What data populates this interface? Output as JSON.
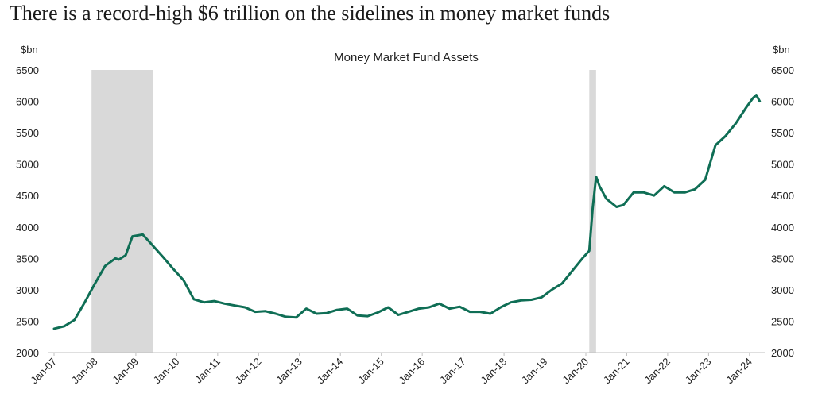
{
  "headline": "There is a record-high $6 trillion on the sidelines in money market funds",
  "colors": {
    "line": "#0f6e55",
    "recession": "#d9d9d9",
    "axis": "#bfbfbf",
    "text": "#222222"
  },
  "chart_data": {
    "type": "line",
    "title": "Money Market Fund Assets",
    "ylabel_left": "$bn",
    "ylabel_right": "$bn",
    "ylim": [
      2000,
      6500
    ],
    "yticks": [
      2000,
      2500,
      3000,
      3500,
      4000,
      4500,
      5000,
      5500,
      6000,
      6500
    ],
    "ytick_labels": [
      "2000",
      "2500",
      "3000",
      "3500",
      "4000",
      "4500",
      "5000",
      "5500",
      "6000",
      "6500"
    ],
    "xlim": [
      "2007-01",
      "2024-05"
    ],
    "xtick_labels": [
      "Jan-07",
      "Jan-08",
      "Jan-09",
      "Jan-10",
      "Jan-11",
      "Jan-12",
      "Jan-13",
      "Jan-14",
      "Jan-15",
      "Jan-16",
      "Jan-17",
      "Jan-18",
      "Jan-19",
      "Jan-20",
      "Jan-21",
      "Jan-22",
      "Jan-23",
      "Jan-24"
    ],
    "grid": false,
    "legend": "none",
    "shaded_periods": [
      {
        "start": "2007-12",
        "end": "2009-06"
      },
      {
        "start": "2020-02",
        "end": "2020-04"
      }
    ],
    "series": [
      {
        "x": [
          "2007-01",
          "2007-04",
          "2007-07",
          "2007-10",
          "2008-01",
          "2008-04",
          "2008-07",
          "2008-08",
          "2008-10",
          "2008-12",
          "2009-03",
          "2009-06",
          "2009-09",
          "2009-12",
          "2010-03",
          "2010-06",
          "2010-09",
          "2010-12",
          "2011-03",
          "2011-06",
          "2011-09",
          "2011-12",
          "2012-03",
          "2012-06",
          "2012-09",
          "2012-12",
          "2013-03",
          "2013-06",
          "2013-09",
          "2013-12",
          "2014-03",
          "2014-06",
          "2014-09",
          "2014-12",
          "2015-03",
          "2015-06",
          "2015-09",
          "2015-12",
          "2016-03",
          "2016-06",
          "2016-09",
          "2016-12",
          "2017-03",
          "2017-06",
          "2017-09",
          "2017-12",
          "2018-03",
          "2018-06",
          "2018-09",
          "2018-12",
          "2019-03",
          "2019-06",
          "2019-09",
          "2019-12",
          "2020-02",
          "2020-03",
          "2020-04",
          "2020-05",
          "2020-07",
          "2020-10",
          "2020-12",
          "2021-03",
          "2021-06",
          "2021-09",
          "2021-12",
          "2022-03",
          "2022-06",
          "2022-09",
          "2022-12",
          "2023-03",
          "2023-06",
          "2023-09",
          "2023-12",
          "2024-02",
          "2024-03",
          "2024-04"
        ],
        "values": [
          2380,
          2420,
          2520,
          2800,
          3100,
          3380,
          3500,
          3480,
          3550,
          3850,
          3880,
          3700,
          3520,
          3330,
          3150,
          2850,
          2800,
          2820,
          2780,
          2750,
          2720,
          2650,
          2660,
          2620,
          2570,
          2560,
          2700,
          2620,
          2630,
          2680,
          2700,
          2590,
          2580,
          2640,
          2720,
          2600,
          2650,
          2700,
          2720,
          2780,
          2700,
          2730,
          2650,
          2650,
          2620,
          2720,
          2800,
          2830,
          2840,
          2880,
          3000,
          3100,
          3300,
          3500,
          3620,
          4300,
          4800,
          4650,
          4450,
          4320,
          4350,
          4550,
          4550,
          4500,
          4650,
          4550,
          4550,
          4600,
          4750,
          5300,
          5450,
          5650,
          5900,
          6050,
          6100,
          6000
        ]
      }
    ]
  }
}
